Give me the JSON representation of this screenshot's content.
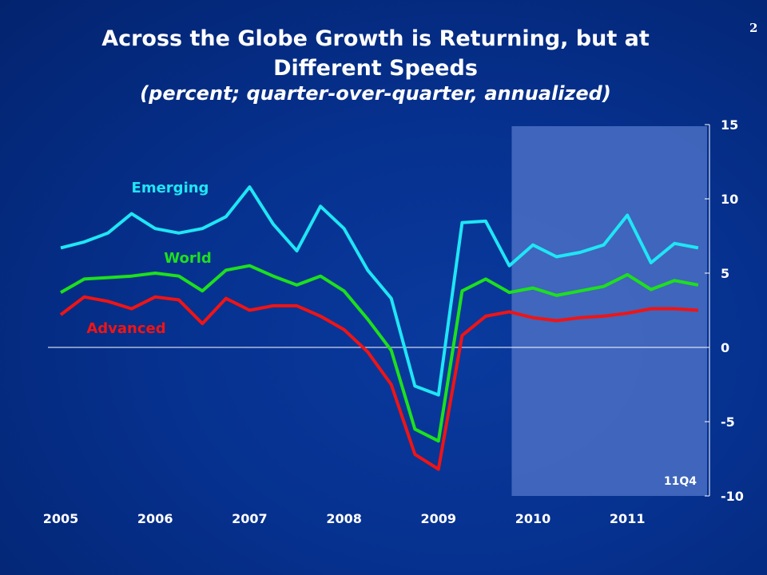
{
  "slide": {
    "title": "Across the Globe Growth is Returning, but at Different Speeds",
    "subtitle": "(percent; quarter-over-quarter, annualized)",
    "page_number": "2"
  },
  "chart_data": {
    "type": "line",
    "title": "Across the Globe Growth is Returning, but at Different Speeds",
    "subtitle": "(percent; quarter-over-quarter, annualized)",
    "x_tick_labels": [
      "2005",
      "2006",
      "2007",
      "2008",
      "2009",
      "2010",
      "2011"
    ],
    "quarters_start": "2005Q1",
    "quarters_end": "2011Q4",
    "y_ticks": [
      15,
      10,
      5,
      0,
      -5,
      -10
    ],
    "ylim": [
      -10,
      15
    ],
    "y_axis_side": "right",
    "grid": false,
    "zero_line": true,
    "shaded_forecast_region": {
      "from": "2009Q4",
      "to": "2011Q4",
      "label": "11Q4",
      "color": "#4a6fc4"
    },
    "series": [
      {
        "name": "Emerging",
        "color": "#1fe6f5",
        "values": [
          6.7,
          7.1,
          7.7,
          9.0,
          8.0,
          7.7,
          8.0,
          8.8,
          10.8,
          8.3,
          6.5,
          9.5,
          8.0,
          5.2,
          3.3,
          -2.6,
          -3.2,
          8.4,
          8.5,
          5.5,
          6.9,
          6.1,
          6.4,
          6.9,
          8.9,
          5.7,
          7.0,
          6.7
        ]
      },
      {
        "name": "World",
        "color": "#1de01d",
        "values": [
          3.7,
          4.6,
          4.7,
          4.8,
          5.0,
          4.8,
          3.8,
          5.2,
          5.5,
          4.8,
          4.2,
          4.8,
          3.8,
          1.9,
          -0.2,
          -5.5,
          -6.3,
          3.8,
          4.6,
          3.7,
          4.0,
          3.5,
          3.8,
          4.1,
          4.9,
          3.9,
          4.5,
          4.2
        ]
      },
      {
        "name": "Advanced",
        "color": "#f01414",
        "values": [
          2.2,
          3.4,
          3.1,
          2.6,
          3.4,
          3.2,
          1.6,
          3.3,
          2.5,
          2.8,
          2.8,
          2.1,
          1.2,
          -0.3,
          -2.5,
          -7.2,
          -8.2,
          0.8,
          2.1,
          2.4,
          2.0,
          1.8,
          2.0,
          2.1,
          2.3,
          2.6,
          2.6,
          2.5
        ]
      }
    ]
  }
}
